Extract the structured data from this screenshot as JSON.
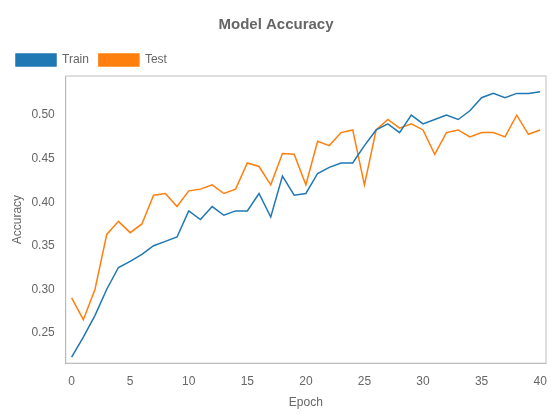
{
  "chart_data": {
    "type": "line",
    "title": "Model Accuracy",
    "xlabel": "Epoch",
    "ylabel": "Accuracy",
    "x": [
      0,
      1,
      2,
      3,
      4,
      5,
      6,
      7,
      8,
      9,
      10,
      11,
      12,
      13,
      14,
      15,
      16,
      17,
      18,
      19,
      20,
      21,
      22,
      23,
      24,
      25,
      26,
      27,
      28,
      29,
      30,
      31,
      32,
      33,
      34,
      35,
      36,
      37,
      38,
      39,
      40
    ],
    "series": [
      {
        "name": "Train",
        "color": "#1f77b4",
        "values": [
          0.222,
          0.245,
          0.27,
          0.3,
          0.325,
          0.332,
          0.34,
          0.35,
          0.355,
          0.36,
          0.39,
          0.38,
          0.395,
          0.385,
          0.39,
          0.39,
          0.41,
          0.383,
          0.43,
          0.408,
          0.41,
          0.433,
          0.44,
          0.445,
          0.445,
          0.465,
          0.483,
          0.49,
          0.48,
          0.5,
          0.49,
          0.495,
          0.5,
          0.495,
          0.505,
          0.52,
          0.525,
          0.52,
          0.525,
          0.525,
          0.527
        ]
      },
      {
        "name": "Test",
        "color": "#ff7f0e",
        "values": [
          0.29,
          0.265,
          0.3,
          0.363,
          0.378,
          0.365,
          0.375,
          0.408,
          0.41,
          0.395,
          0.413,
          0.415,
          0.42,
          0.41,
          0.415,
          0.445,
          0.441,
          0.42,
          0.456,
          0.455,
          0.42,
          0.47,
          0.465,
          0.48,
          0.483,
          0.42,
          0.483,
          0.495,
          0.485,
          0.49,
          0.483,
          0.455,
          0.48,
          0.483,
          0.475,
          0.48,
          0.48,
          0.475,
          0.5,
          0.478,
          0.483
        ]
      }
    ],
    "xlim": [
      -0.5,
      40.5
    ],
    "ylim": [
      0.215,
      0.545
    ],
    "xticks": [
      0,
      5,
      10,
      15,
      20,
      25,
      30,
      35,
      40
    ],
    "yticks": [
      0.25,
      {
        "value": 0.3,
        "label": "0.30"
      },
      0.35,
      {
        "value": 0.4,
        "label": "0.40"
      },
      0.45,
      {
        "value": 0.5,
        "label": "0.50"
      }
    ],
    "legend": "upper left",
    "grid": false
  }
}
